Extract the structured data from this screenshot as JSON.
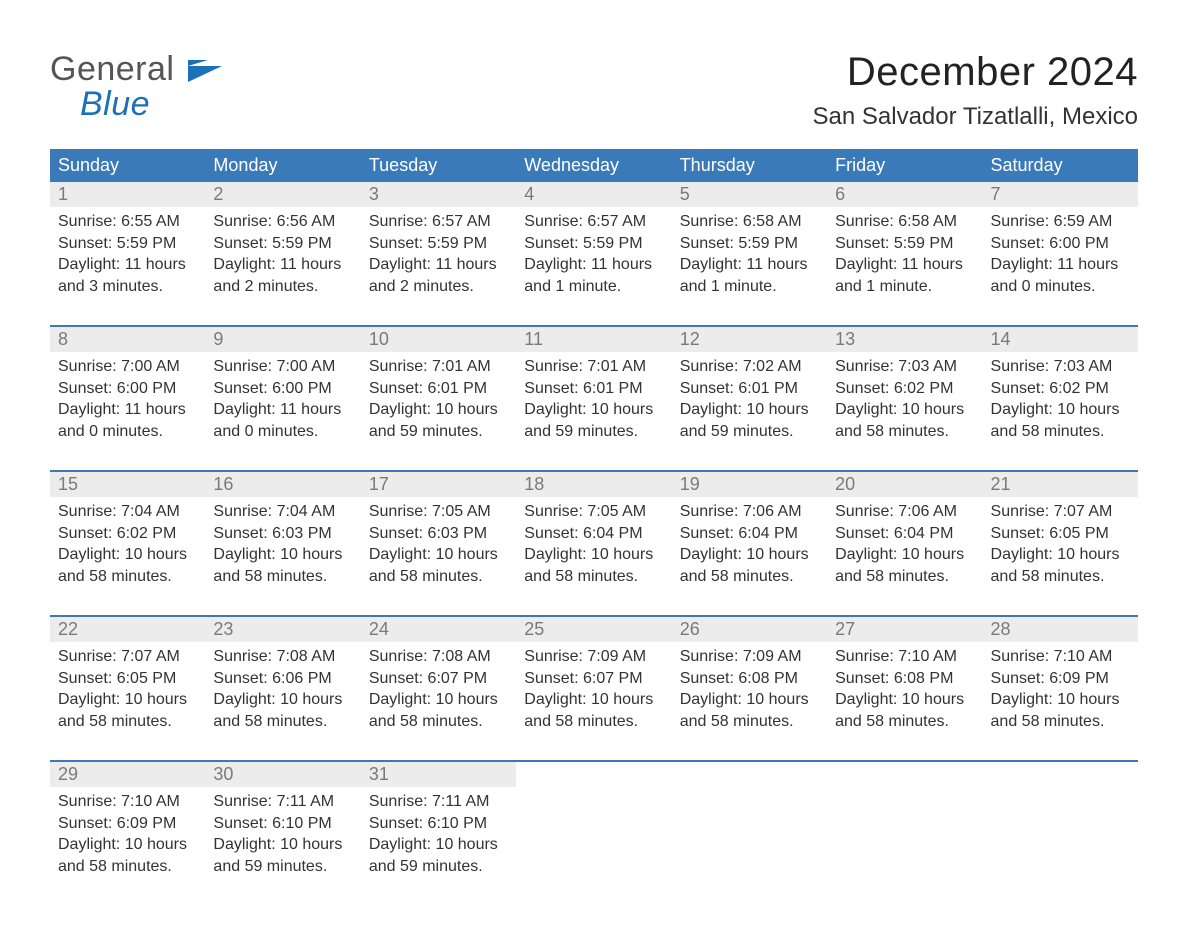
{
  "brand": {
    "gray_text": "General",
    "blue_text": "Blue"
  },
  "title": "December 2024",
  "location": "San Salvador Tizatlalli, Mexico",
  "colors": {
    "header_bg": "#3a7ab8",
    "header_fg": "#ffffff",
    "daynum_bg": "#ececec",
    "daynum_fg": "#7a7a7a",
    "week_rule": "#3a7ab8",
    "body_fg": "#333333",
    "page_bg": "#ffffff",
    "logo_gray": "#555555",
    "logo_blue": "#1d6fb8"
  },
  "day_of_week": [
    "Sunday",
    "Monday",
    "Tuesday",
    "Wednesday",
    "Thursday",
    "Friday",
    "Saturday"
  ],
  "weeks": [
    [
      {
        "n": "1",
        "sunrise": "Sunrise: 6:55 AM",
        "sunset": "Sunset: 5:59 PM",
        "day1": "Daylight: 11 hours",
        "day2": "and 3 minutes."
      },
      {
        "n": "2",
        "sunrise": "Sunrise: 6:56 AM",
        "sunset": "Sunset: 5:59 PM",
        "day1": "Daylight: 11 hours",
        "day2": "and 2 minutes."
      },
      {
        "n": "3",
        "sunrise": "Sunrise: 6:57 AM",
        "sunset": "Sunset: 5:59 PM",
        "day1": "Daylight: 11 hours",
        "day2": "and 2 minutes."
      },
      {
        "n": "4",
        "sunrise": "Sunrise: 6:57 AM",
        "sunset": "Sunset: 5:59 PM",
        "day1": "Daylight: 11 hours",
        "day2": "and 1 minute."
      },
      {
        "n": "5",
        "sunrise": "Sunrise: 6:58 AM",
        "sunset": "Sunset: 5:59 PM",
        "day1": "Daylight: 11 hours",
        "day2": "and 1 minute."
      },
      {
        "n": "6",
        "sunrise": "Sunrise: 6:58 AM",
        "sunset": "Sunset: 5:59 PM",
        "day1": "Daylight: 11 hours",
        "day2": "and 1 minute."
      },
      {
        "n": "7",
        "sunrise": "Sunrise: 6:59 AM",
        "sunset": "Sunset: 6:00 PM",
        "day1": "Daylight: 11 hours",
        "day2": "and 0 minutes."
      }
    ],
    [
      {
        "n": "8",
        "sunrise": "Sunrise: 7:00 AM",
        "sunset": "Sunset: 6:00 PM",
        "day1": "Daylight: 11 hours",
        "day2": "and 0 minutes."
      },
      {
        "n": "9",
        "sunrise": "Sunrise: 7:00 AM",
        "sunset": "Sunset: 6:00 PM",
        "day1": "Daylight: 11 hours",
        "day2": "and 0 minutes."
      },
      {
        "n": "10",
        "sunrise": "Sunrise: 7:01 AM",
        "sunset": "Sunset: 6:01 PM",
        "day1": "Daylight: 10 hours",
        "day2": "and 59 minutes."
      },
      {
        "n": "11",
        "sunrise": "Sunrise: 7:01 AM",
        "sunset": "Sunset: 6:01 PM",
        "day1": "Daylight: 10 hours",
        "day2": "and 59 minutes."
      },
      {
        "n": "12",
        "sunrise": "Sunrise: 7:02 AM",
        "sunset": "Sunset: 6:01 PM",
        "day1": "Daylight: 10 hours",
        "day2": "and 59 minutes."
      },
      {
        "n": "13",
        "sunrise": "Sunrise: 7:03 AM",
        "sunset": "Sunset: 6:02 PM",
        "day1": "Daylight: 10 hours",
        "day2": "and 58 minutes."
      },
      {
        "n": "14",
        "sunrise": "Sunrise: 7:03 AM",
        "sunset": "Sunset: 6:02 PM",
        "day1": "Daylight: 10 hours",
        "day2": "and 58 minutes."
      }
    ],
    [
      {
        "n": "15",
        "sunrise": "Sunrise: 7:04 AM",
        "sunset": "Sunset: 6:02 PM",
        "day1": "Daylight: 10 hours",
        "day2": "and 58 minutes."
      },
      {
        "n": "16",
        "sunrise": "Sunrise: 7:04 AM",
        "sunset": "Sunset: 6:03 PM",
        "day1": "Daylight: 10 hours",
        "day2": "and 58 minutes."
      },
      {
        "n": "17",
        "sunrise": "Sunrise: 7:05 AM",
        "sunset": "Sunset: 6:03 PM",
        "day1": "Daylight: 10 hours",
        "day2": "and 58 minutes."
      },
      {
        "n": "18",
        "sunrise": "Sunrise: 7:05 AM",
        "sunset": "Sunset: 6:04 PM",
        "day1": "Daylight: 10 hours",
        "day2": "and 58 minutes."
      },
      {
        "n": "19",
        "sunrise": "Sunrise: 7:06 AM",
        "sunset": "Sunset: 6:04 PM",
        "day1": "Daylight: 10 hours",
        "day2": "and 58 minutes."
      },
      {
        "n": "20",
        "sunrise": "Sunrise: 7:06 AM",
        "sunset": "Sunset: 6:04 PM",
        "day1": "Daylight: 10 hours",
        "day2": "and 58 minutes."
      },
      {
        "n": "21",
        "sunrise": "Sunrise: 7:07 AM",
        "sunset": "Sunset: 6:05 PM",
        "day1": "Daylight: 10 hours",
        "day2": "and 58 minutes."
      }
    ],
    [
      {
        "n": "22",
        "sunrise": "Sunrise: 7:07 AM",
        "sunset": "Sunset: 6:05 PM",
        "day1": "Daylight: 10 hours",
        "day2": "and 58 minutes."
      },
      {
        "n": "23",
        "sunrise": "Sunrise: 7:08 AM",
        "sunset": "Sunset: 6:06 PM",
        "day1": "Daylight: 10 hours",
        "day2": "and 58 minutes."
      },
      {
        "n": "24",
        "sunrise": "Sunrise: 7:08 AM",
        "sunset": "Sunset: 6:07 PM",
        "day1": "Daylight: 10 hours",
        "day2": "and 58 minutes."
      },
      {
        "n": "25",
        "sunrise": "Sunrise: 7:09 AM",
        "sunset": "Sunset: 6:07 PM",
        "day1": "Daylight: 10 hours",
        "day2": "and 58 minutes."
      },
      {
        "n": "26",
        "sunrise": "Sunrise: 7:09 AM",
        "sunset": "Sunset: 6:08 PM",
        "day1": "Daylight: 10 hours",
        "day2": "and 58 minutes."
      },
      {
        "n": "27",
        "sunrise": "Sunrise: 7:10 AM",
        "sunset": "Sunset: 6:08 PM",
        "day1": "Daylight: 10 hours",
        "day2": "and 58 minutes."
      },
      {
        "n": "28",
        "sunrise": "Sunrise: 7:10 AM",
        "sunset": "Sunset: 6:09 PM",
        "day1": "Daylight: 10 hours",
        "day2": "and 58 minutes."
      }
    ],
    [
      {
        "n": "29",
        "sunrise": "Sunrise: 7:10 AM",
        "sunset": "Sunset: 6:09 PM",
        "day1": "Daylight: 10 hours",
        "day2": "and 58 minutes."
      },
      {
        "n": "30",
        "sunrise": "Sunrise: 7:11 AM",
        "sunset": "Sunset: 6:10 PM",
        "day1": "Daylight: 10 hours",
        "day2": "and 59 minutes."
      },
      {
        "n": "31",
        "sunrise": "Sunrise: 7:11 AM",
        "sunset": "Sunset: 6:10 PM",
        "day1": "Daylight: 10 hours",
        "day2": "and 59 minutes."
      },
      null,
      null,
      null,
      null
    ]
  ]
}
